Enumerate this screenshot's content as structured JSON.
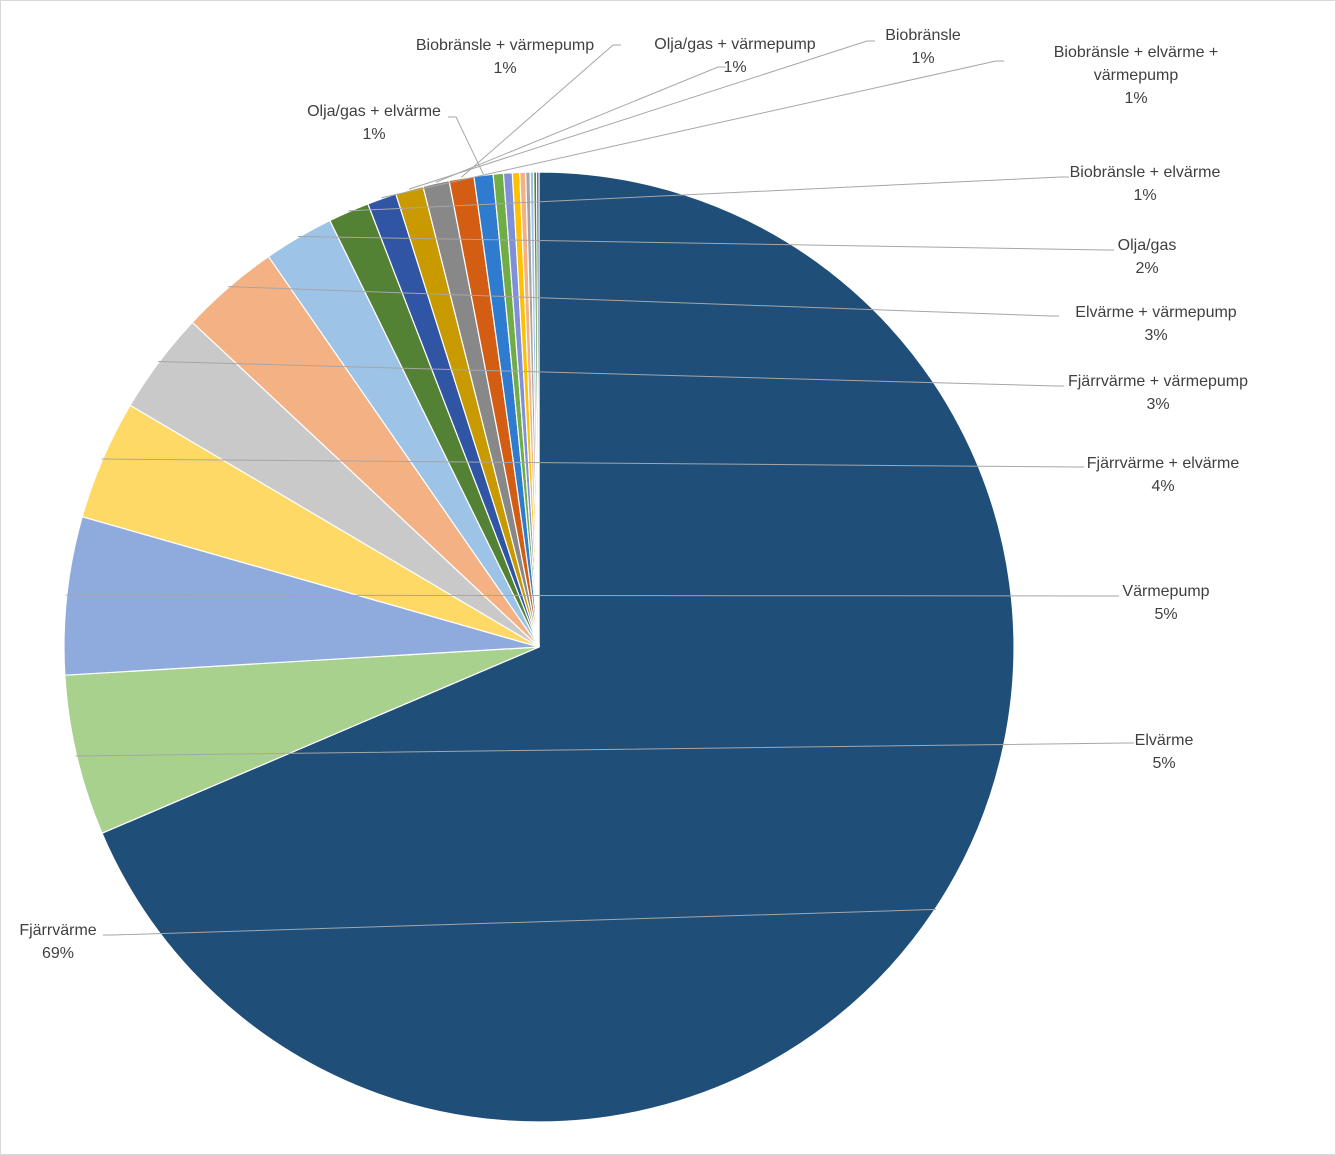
{
  "chart_data": {
    "type": "pie",
    "title": "",
    "start": "top",
    "direction": "clockwise",
    "slices": [
      {
        "label": "Fjärrvärme",
        "value": 69,
        "pct_label": "69%",
        "color": "#1f4e79"
      },
      {
        "label": "Elvärme",
        "value": 5.5,
        "pct_label": "5%",
        "color": "#a9d18e"
      },
      {
        "label": "Värmepump",
        "value": 5.4,
        "pct_label": "5%",
        "color": "#8faadc"
      },
      {
        "label": "Fjärrvärme + elvärme",
        "value": 4.1,
        "pct_label": "4%",
        "color": "#ffd966"
      },
      {
        "label": "Fjärrvärme + värmepump",
        "value": 3.5,
        "pct_label": "3%",
        "color": "#c9c9c9"
      },
      {
        "label": "Elvärme + värmepump",
        "value": 3.4,
        "pct_label": "3%",
        "color": "#f4b183"
      },
      {
        "label": "Olja/gas",
        "value": 2.4,
        "pct_label": "2%",
        "color": "#9dc3e6"
      },
      {
        "label": "Biobränsle + elvärme",
        "value": 1.4,
        "pct_label": "1%",
        "color": "#548235"
      },
      {
        "label": "Biobränsle + elvärme + värmepump",
        "value": 1.0,
        "pct_label": "1%",
        "color": "#2f55a4"
      },
      {
        "label": "Biobränsle",
        "value": 0.95,
        "pct_label": "1%",
        "color": "#c89a00"
      },
      {
        "label": "Olja/gas + värmepump",
        "value": 0.9,
        "pct_label": "1%",
        "color": "#888888"
      },
      {
        "label": "Biobränsle + värmepump",
        "value": 0.85,
        "pct_label": "1%",
        "color": "#d35d13"
      },
      {
        "label": "Olja/gas + elvärme",
        "value": 0.65,
        "pct_label": "1%",
        "color": "#2e7bcf"
      },
      {
        "label": "",
        "value": 0.35,
        "pct_label": "",
        "color": "#70ad47"
      },
      {
        "label": "",
        "value": 0.3,
        "pct_label": "",
        "color": "#7f8fd8"
      },
      {
        "label": "",
        "value": 0.25,
        "pct_label": "",
        "color": "#ffc000"
      },
      {
        "label": "",
        "value": 0.2,
        "pct_label": "",
        "color": "#f4b183"
      },
      {
        "label": "",
        "value": 0.15,
        "pct_label": "",
        "color": "#a5a5a5"
      },
      {
        "label": "",
        "value": 0.12,
        "pct_label": "",
        "color": "#9dc3e6"
      },
      {
        "label": "",
        "value": 0.1,
        "pct_label": "",
        "color": "#548235"
      },
      {
        "label": "",
        "value": 0.08,
        "pct_label": "",
        "color": "#1f4e79"
      }
    ]
  }
}
